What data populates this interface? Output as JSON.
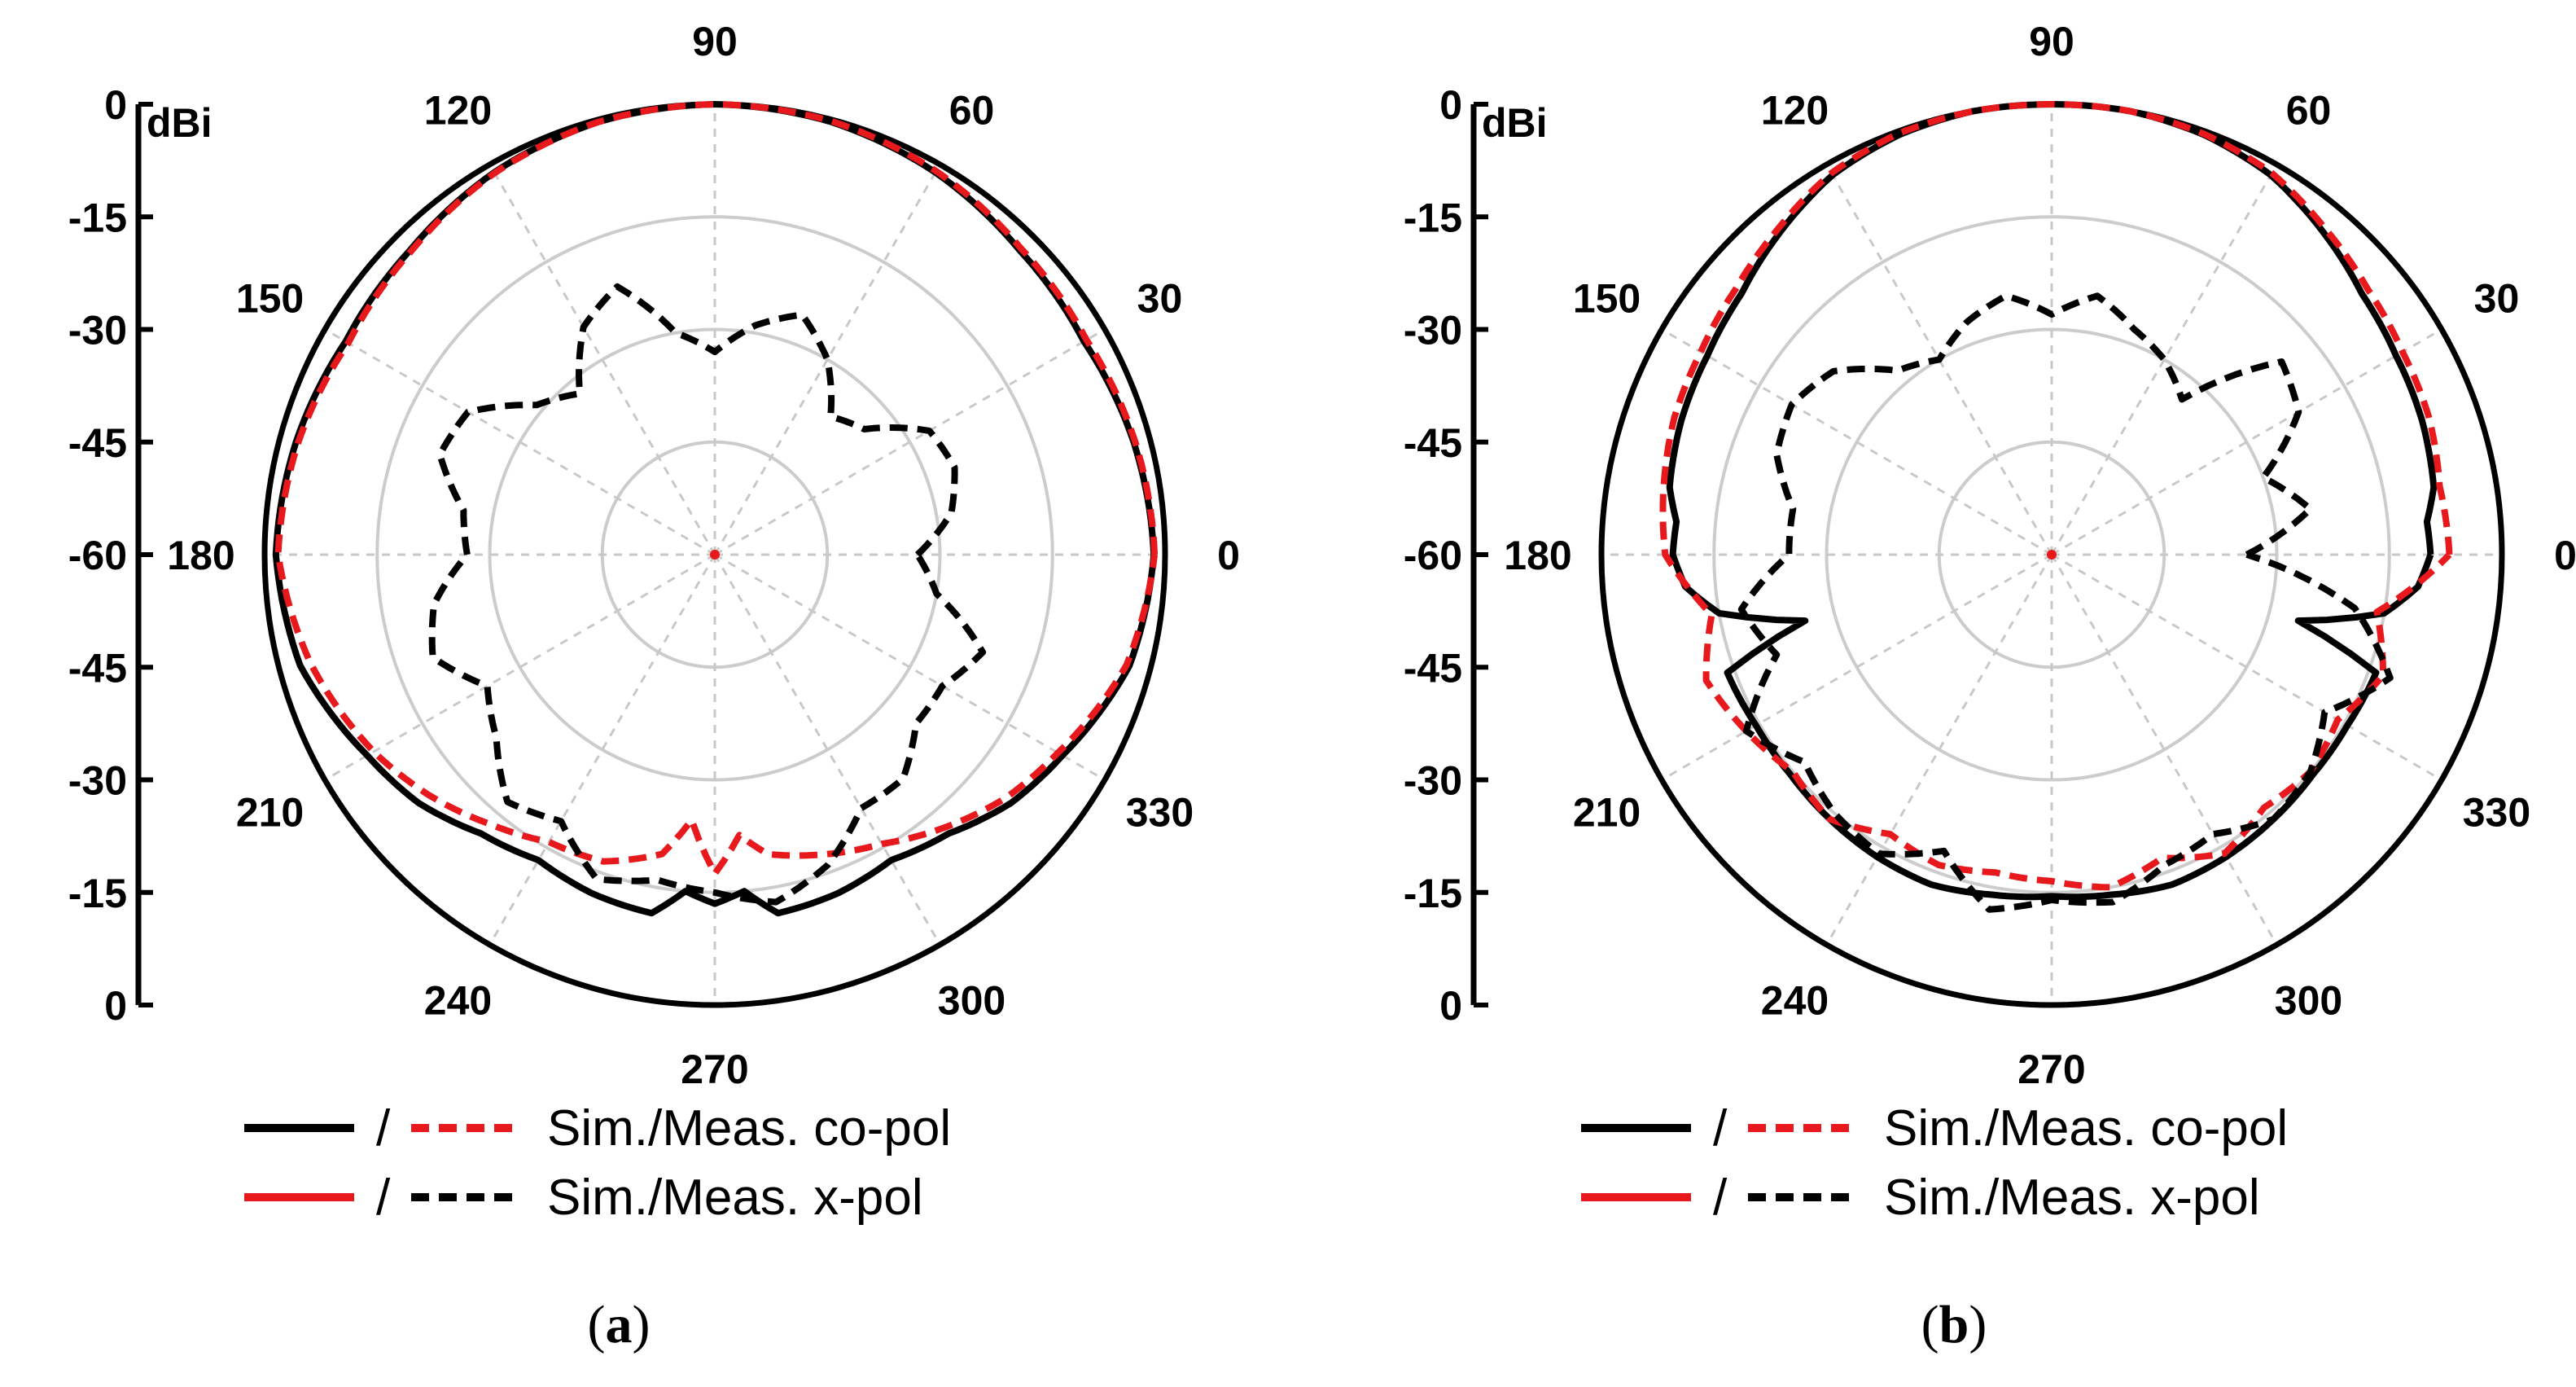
{
  "chart_data": [
    {
      "type": "polar",
      "caption": "(a)",
      "caption_letter": "a",
      "radial_unit": "dBi",
      "radial_axis_labels": [
        "0",
        "-15",
        "-30",
        "-45",
        "-60",
        "-45",
        "-30",
        "-15",
        "0"
      ],
      "rlim": [
        -60,
        0
      ],
      "grid_circles_db": [
        -15,
        -30,
        -45
      ],
      "angle_labels": [
        "0",
        "30",
        "60",
        "90",
        "120",
        "150",
        "180",
        "210",
        "240",
        "270",
        "300",
        "330"
      ],
      "series": [
        {
          "style": "sim-co-pol",
          "color": "#000000",
          "dash": "solid",
          "angles": [
            0,
            15,
            30,
            45,
            60,
            75,
            90,
            105,
            120,
            135,
            150,
            165,
            180,
            195,
            210,
            220,
            230,
            240,
            250,
            260,
            265,
            270,
            275,
            280,
            290,
            300,
            310,
            320,
            330,
            345,
            360
          ],
          "values": [
            -1.5,
            -2.2,
            -3.2,
            -2.6,
            -1.2,
            -0.3,
            0,
            -0.3,
            -1.2,
            -2.6,
            -3.2,
            -2.2,
            -1.5,
            -2.8,
            -6.5,
            -8.5,
            -11.5,
            -13,
            -12,
            -11.5,
            -15,
            -13.5,
            -15,
            -11.5,
            -12,
            -13,
            -11.5,
            -8.5,
            -6.5,
            -2.8,
            -1.5
          ]
        },
        {
          "style": "meas-co-pol",
          "color": "#e8191c",
          "dash": "dashed",
          "angles": [
            0,
            15,
            30,
            45,
            60,
            75,
            90,
            105,
            120,
            135,
            150,
            165,
            180,
            195,
            210,
            220,
            230,
            240,
            250,
            260,
            265,
            270,
            275,
            280,
            290,
            300,
            310,
            320,
            330,
            345,
            360
          ],
          "values": [
            -1.4,
            -2,
            -2.8,
            -2.3,
            -1.0,
            -0.2,
            0,
            -0.3,
            -1.3,
            -2.8,
            -3.6,
            -2.5,
            -1.8,
            -4.2,
            -7.5,
            -10.2,
            -13.2,
            -15.8,
            -16.5,
            -19.5,
            -24.5,
            -17.5,
            -22.5,
            -19.5,
            -17.5,
            -15.5,
            -12.5,
            -9.5,
            -7.2,
            -3.2,
            -1.4
          ]
        },
        {
          "style": "meas-x-pol",
          "color": "#000000",
          "dash": "dashed",
          "angles": [
            0,
            10,
            20,
            30,
            40,
            50,
            60,
            70,
            80,
            90,
            100,
            110,
            120,
            130,
            140,
            150,
            160,
            170,
            180,
            190,
            200,
            210,
            220,
            230,
            240,
            250,
            260,
            270,
            280,
            290,
            300,
            310,
            320,
            330,
            340,
            350,
            360
          ],
          "values": [
            -33,
            -28,
            -26,
            -27,
            -34,
            -36,
            -30,
            -26,
            -29,
            -33,
            -30,
            -22,
            -25,
            -32,
            -29,
            -22,
            -21,
            -26,
            -27,
            -22,
            -20,
            -25,
            -22,
            -17,
            -19,
            -14,
            -16,
            -15,
            -13,
            -16,
            -21,
            -21,
            -25,
            -25,
            -22,
            -30,
            -33
          ]
        },
        {
          "style": "sim-x-pol",
          "color": "#e8191c",
          "dash": "solid",
          "angles": [
            0,
            360
          ],
          "values": [
            -60,
            -60
          ]
        }
      ]
    },
    {
      "type": "polar",
      "caption": "(b)",
      "caption_letter": "b",
      "radial_unit": "dBi",
      "radial_axis_labels": [
        "0",
        "-15",
        "-30",
        "-45",
        "-60",
        "-45",
        "-30",
        "-15",
        "0"
      ],
      "rlim": [
        -60,
        0
      ],
      "grid_circles_db": [
        -15,
        -30,
        -45
      ],
      "angle_labels": [
        "0",
        "30",
        "60",
        "90",
        "120",
        "150",
        "180",
        "210",
        "240",
        "270",
        "300",
        "330"
      ],
      "series": [
        {
          "style": "sim-co-pol",
          "color": "#000000",
          "dash": "solid",
          "angles": [
            0,
            5,
            10,
            20,
            30,
            40,
            50,
            60,
            70,
            80,
            90,
            100,
            110,
            120,
            130,
            140,
            150,
            160,
            170,
            175,
            180,
            185,
            190,
            195,
            200,
            210,
            220,
            230,
            240,
            250,
            260,
            270,
            280,
            290,
            300,
            310,
            320,
            330,
            340,
            345,
            350,
            355,
            360
          ],
          "values": [
            -9.5,
            -9.8,
            -8.3,
            -7.5,
            -7,
            -6,
            -3.8,
            -1.6,
            -0.5,
            0,
            0,
            0,
            -0.5,
            -1.6,
            -3.8,
            -6,
            -7,
            -7.5,
            -8.3,
            -9.8,
            -9.5,
            -11,
            -15,
            -26,
            -14,
            -14.5,
            -14.5,
            -14,
            -13.5,
            -13.2,
            -14,
            -14.5,
            -14,
            -13.2,
            -13.5,
            -14,
            -14.5,
            -14.5,
            -14,
            -26,
            -15,
            -11,
            -9.5
          ]
        },
        {
          "style": "meas-co-pol",
          "color": "#e8191c",
          "dash": "dashed",
          "angles": [
            0,
            10,
            20,
            30,
            40,
            50,
            60,
            70,
            80,
            90,
            100,
            110,
            120,
            130,
            140,
            150,
            160,
            170,
            180,
            190,
            200,
            210,
            220,
            230,
            240,
            250,
            260,
            270,
            280,
            290,
            300,
            310,
            320,
            330,
            340,
            350,
            360
          ],
          "values": [
            -7,
            -7.5,
            -6.5,
            -6,
            -5,
            -3.3,
            -1.3,
            -0.4,
            0,
            0,
            0,
            -0.3,
            -1.3,
            -3.3,
            -5,
            -6,
            -6.5,
            -7.5,
            -8.5,
            -14,
            -11,
            -13,
            -15,
            -14,
            -17,
            -16,
            -17,
            -16.5,
            -15,
            -17,
            -14,
            -16,
            -15,
            -16,
            -13,
            -16,
            -7
          ]
        },
        {
          "style": "meas-x-pol",
          "color": "#000000",
          "dash": "dashed",
          "angles": [
            0,
            10,
            20,
            30,
            40,
            50,
            60,
            70,
            80,
            90,
            100,
            110,
            120,
            130,
            140,
            150,
            160,
            170,
            180,
            190,
            200,
            210,
            220,
            230,
            240,
            250,
            260,
            270,
            280,
            290,
            300,
            310,
            320,
            330,
            340,
            350,
            360
          ],
          "values": [
            -34,
            -25,
            -30,
            -22,
            -20,
            -33,
            -30,
            -28,
            -25,
            -28,
            -25,
            -27,
            -30,
            -28,
            -22,
            -20,
            -21,
            -25,
            -25,
            -18,
            -21,
            -13,
            -17,
            -15,
            -14,
            -18,
            -12,
            -14,
            -13,
            -16,
            -17,
            -14,
            -15,
            -18,
            -12,
            -19,
            -34
          ]
        },
        {
          "style": "sim-x-pol",
          "color": "#e8191c",
          "dash": "solid",
          "angles": [
            0,
            360
          ],
          "values": [
            -60,
            -60
          ]
        }
      ]
    }
  ],
  "legend": {
    "items": [
      {
        "solid_color": "#000000",
        "dashed_color": "#e8191c",
        "slash": "/",
        "label": "Sim./Meas. co-pol"
      },
      {
        "solid_color": "#e8191c",
        "dashed_color": "#000000",
        "slash": "/",
        "label": "Sim./Meas. x-pol"
      }
    ]
  }
}
